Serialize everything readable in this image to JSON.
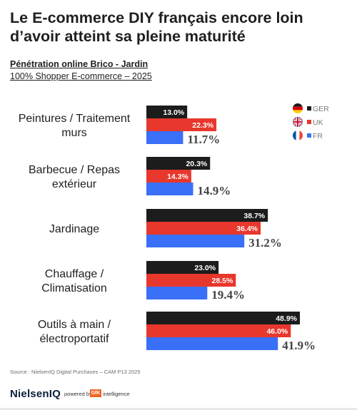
{
  "page": {
    "title": "Le E-commerce DIY français encore loin d’avoir atteint sa pleine maturité",
    "subtitle": "Pénétration online Brico - Jardin",
    "subtitle2": "100% Shopper E-commerce – 2025",
    "source": "Source : NielsenIQ  Digital Purchases  – CAM P13 2025",
    "brand": "NielsenIQ",
    "powered_by": "powered by",
    "gfk": "GfK",
    "intelligence": "intelligence"
  },
  "colors": {
    "GER": "#1c1c1c",
    "UK": "#e8372c",
    "FR": "#3a6ff7"
  },
  "chart_data": {
    "type": "bar",
    "orientation": "horizontal",
    "categories": [
      [
        "Peintures / Traitement",
        "murs"
      ],
      [
        "Barbecue / Repas",
        "extérieur"
      ],
      [
        "Jardinage"
      ],
      [
        "Chauffage /",
        "Climatisation"
      ],
      [
        "Outils à main /",
        "électroportatif"
      ]
    ],
    "series": [
      {
        "name": "GER",
        "values": [
          13.0,
          20.3,
          38.7,
          23.0,
          48.9
        ],
        "labels": [
          "13.0%",
          "20.3%",
          "38.7%",
          "23.0%",
          "48.9%"
        ]
      },
      {
        "name": "UK",
        "values": [
          22.3,
          14.3,
          36.4,
          28.5,
          46.0
        ],
        "labels": [
          "22.3%",
          "14.3%",
          "36.4%",
          "28.5%",
          "46.0%"
        ]
      },
      {
        "name": "FR",
        "values": [
          11.7,
          14.9,
          31.2,
          19.4,
          41.9
        ],
        "labels": [
          "11.7%",
          "14.9%",
          "31.2%",
          "19.4%",
          "41.9%"
        ]
      }
    ],
    "legend": [
      "GER",
      "UK",
      "FR"
    ],
    "legend_position": "top-right",
    "xlim": [
      0,
      50
    ],
    "grid": false
  }
}
